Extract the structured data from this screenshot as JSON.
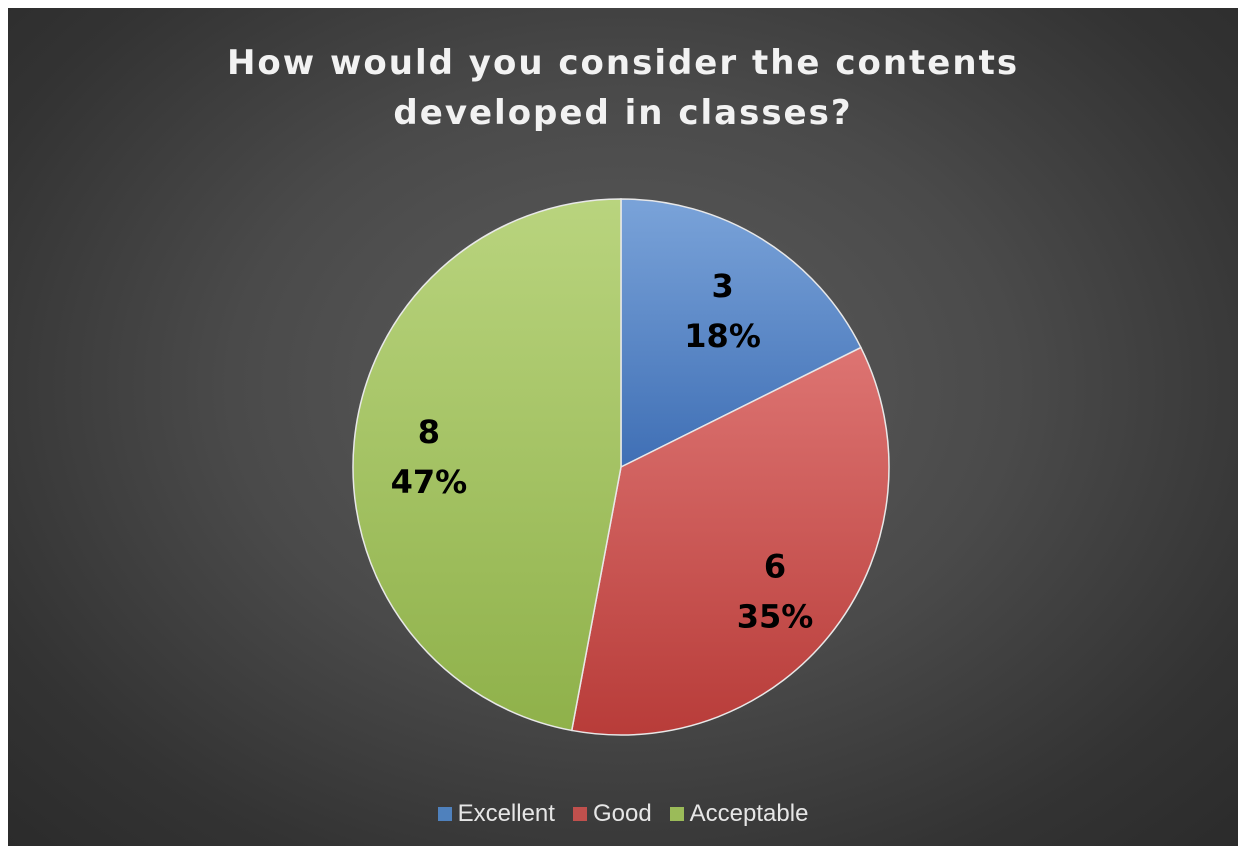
{
  "chart_data": {
    "type": "pie",
    "title": "How would you consider the contents\ndeveloped in classes?",
    "categories": [
      "Excellent",
      "Good",
      "Acceptable"
    ],
    "values": [
      3,
      6,
      8
    ],
    "percent_labels": [
      "18%",
      "35%",
      "47%"
    ],
    "colors": [
      "#4f81bd",
      "#c0504d",
      "#9bbb59"
    ],
    "legend_position": "bottom"
  }
}
